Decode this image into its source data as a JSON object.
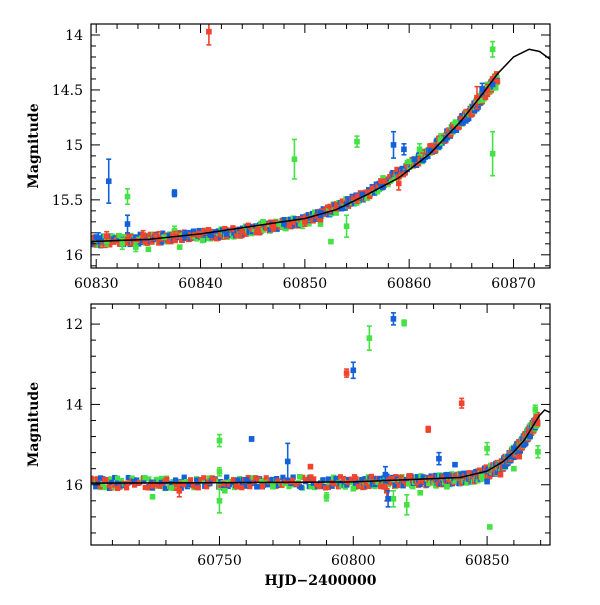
{
  "colors": {
    "green": "#44e244",
    "red": "#f2442c",
    "blue": "#1460d8",
    "model": "#000000"
  },
  "chart_data": [
    {
      "type": "scatter",
      "panel": "top",
      "xlabel": "",
      "ylabel": "Magnitude",
      "xlim": [
        60829.5,
        60873.5
      ],
      "ylim": [
        16.12,
        13.9
      ],
      "y_inverted": true,
      "x_ticks": [
        "60830",
        "60840",
        "60850",
        "60860",
        "60870"
      ],
      "y_ticks": [
        "14",
        "14.5",
        "15",
        "15.5",
        "16"
      ],
      "model_curve": [
        [
          60829.5,
          15.88
        ],
        [
          60835,
          15.86
        ],
        [
          60840,
          15.81
        ],
        [
          60845,
          15.74
        ],
        [
          60850,
          15.67
        ],
        [
          60853,
          15.59
        ],
        [
          60856,
          15.45
        ],
        [
          60859,
          15.3
        ],
        [
          60862,
          15.08
        ],
        [
          60865,
          14.78
        ],
        [
          60867,
          14.54
        ],
        [
          60868.5,
          14.35
        ],
        [
          60870,
          14.2
        ],
        [
          60871.5,
          14.13
        ],
        [
          60872.5,
          14.15
        ],
        [
          60873.5,
          14.22
        ]
      ],
      "series": [
        {
          "name": "",
          "color": "green",
          "points": [
            [
              60831,
              15.88,
              0.04
            ],
            [
              60832.5,
              15.9,
              0.05
            ],
            [
              60833,
              15.47,
              0.07
            ],
            [
              60833.8,
              15.93,
              0.04
            ],
            [
              60835,
              15.95,
              0
            ],
            [
              60836.5,
              15.84,
              0
            ],
            [
              60837.5,
              15.78,
              0.04
            ],
            [
              60838,
              15.93,
              0
            ],
            [
              60840.2,
              15.87,
              0
            ],
            [
              60842.5,
              15.8,
              0
            ],
            [
              60844,
              15.78,
              0
            ],
            [
              60845.5,
              15.75,
              0
            ],
            [
              60846,
              15.7,
              0
            ],
            [
              60847.5,
              15.72,
              0
            ],
            [
              60849,
              15.13,
              0.18
            ],
            [
              60849.8,
              15.72,
              0.04
            ],
            [
              60851.5,
              15.72,
              0
            ],
            [
              60852.5,
              15.88,
              0
            ],
            [
              60853,
              15.62,
              0
            ],
            [
              60854,
              15.74,
              0.1
            ],
            [
              60855,
              14.97,
              0.05
            ],
            [
              60857.5,
              15.3,
              0
            ],
            [
              60860,
              15.15,
              0
            ],
            [
              60861,
              15.04,
              0.05
            ],
            [
              60862,
              15.05,
              0
            ],
            [
              60863,
              14.95,
              0.05
            ],
            [
              60864.5,
              14.8,
              0
            ],
            [
              60866.5,
              14.6,
              0
            ],
            [
              60867.5,
              14.45,
              0
            ],
            [
              60868,
              14.13,
              0.07
            ],
            [
              60868,
              15.08,
              0.2
            ],
            [
              60868.3,
              14.48,
              0
            ]
          ]
        },
        {
          "name": "",
          "color": "red",
          "points": [
            [
              60831,
              15.83,
              0.04
            ],
            [
              60833,
              15.86,
              0.05
            ],
            [
              60834.5,
              15.82,
              0.04
            ],
            [
              60836,
              15.85,
              0.06
            ],
            [
              60837.5,
              15.83,
              0.04
            ],
            [
              60840.8,
              13.97,
              0.12
            ],
            [
              60842.5,
              15.82,
              0.03
            ],
            [
              60844,
              15.79,
              0
            ],
            [
              60845.5,
              15.77,
              0
            ],
            [
              60847,
              15.75,
              0.03
            ],
            [
              60848.5,
              15.73,
              0
            ],
            [
              60850,
              15.7,
              0.04
            ],
            [
              60851.5,
              15.68,
              0
            ],
            [
              60853,
              15.58,
              0
            ],
            [
              60855,
              15.49,
              0.04
            ],
            [
              60856,
              15.43,
              0
            ],
            [
              60857.5,
              15.33,
              0
            ],
            [
              60859,
              15.35,
              0.06
            ],
            [
              60860.5,
              15.13,
              0
            ],
            [
              60862,
              15.01,
              0
            ],
            [
              60863.5,
              14.96,
              0
            ],
            [
              60865,
              14.77,
              0
            ],
            [
              60866.5,
              14.57,
              0.1
            ],
            [
              60867.5,
              14.5,
              0.05
            ],
            [
              60868,
              14.4,
              0
            ]
          ]
        },
        {
          "name": "",
          "color": "blue",
          "points": [
            [
              60830.2,
              15.85,
              0.05
            ],
            [
              60831.2,
              15.33,
              0.2
            ],
            [
              60833,
              15.72,
              0.08
            ],
            [
              60837.5,
              15.44,
              0.03
            ],
            [
              60838.5,
              15.82,
              0.04
            ],
            [
              60841,
              15.82,
              0
            ],
            [
              60842.5,
              15.81,
              0
            ],
            [
              60848,
              15.72,
              0
            ],
            [
              60851.5,
              15.63,
              0.03
            ],
            [
              60853.5,
              15.58,
              0
            ],
            [
              60854,
              15.54,
              0
            ],
            [
              60855.5,
              15.45,
              0
            ],
            [
              60857.5,
              15.38,
              0
            ],
            [
              60858.5,
              15.0,
              0.12
            ],
            [
              60859.5,
              15.04,
              0.05
            ],
            [
              60860.5,
              15.13,
              0
            ],
            [
              60862,
              15.05,
              0
            ],
            [
              60863.5,
              14.95,
              0
            ],
            [
              60865,
              14.8,
              0
            ],
            [
              60867,
              14.49,
              0.05
            ],
            [
              60868,
              14.45,
              0
            ]
          ]
        }
      ],
      "dense_band": [
        [
          60829.5,
          15.88,
          60836,
          15.85
        ],
        [
          60836,
          15.85,
          60843,
          15.8
        ],
        [
          60843,
          15.8,
          60850,
          15.69
        ],
        [
          60850,
          15.69,
          60856,
          15.45
        ],
        [
          60856,
          15.45,
          60862,
          15.06
        ],
        [
          60862,
          15.06,
          60866,
          14.69
        ],
        [
          60866,
          14.69,
          60868.5,
          14.38
        ]
      ]
    },
    {
      "type": "scatter",
      "panel": "bottom",
      "xlabel": "HJD−2400000",
      "ylabel": "Magnitude",
      "xlim": [
        60702,
        60873.5
      ],
      "ylim": [
        17.5,
        11.5
      ],
      "y_inverted": true,
      "x_ticks": [
        "60750",
        "60800",
        "60850"
      ],
      "y_ticks": [
        "12",
        "14",
        "16"
      ],
      "model_curve": [
        [
          60702,
          15.96
        ],
        [
          60750,
          15.95
        ],
        [
          60800,
          15.93
        ],
        [
          60840,
          15.82
        ],
        [
          60850,
          15.66
        ],
        [
          60856,
          15.42
        ],
        [
          60860,
          15.18
        ],
        [
          60864,
          14.88
        ],
        [
          60867,
          14.55
        ],
        [
          60869.5,
          14.28
        ],
        [
          60871.5,
          14.14
        ],
        [
          60873.5,
          14.2
        ]
      ],
      "series": [
        {
          "name": "",
          "color": "green",
          "points": [
            [
              60725,
              16.3,
              0
            ],
            [
              60732,
              16.08,
              0
            ],
            [
              60750,
              14.9,
              0.15
            ],
            [
              60750,
              15.68,
              0.1
            ],
            [
              60750,
              16.4,
              0.3
            ],
            [
              60752,
              16.15,
              0
            ],
            [
              60770,
              16.05,
              0
            ],
            [
              60780,
              15.8,
              0
            ],
            [
              60790,
              16.3,
              0.1
            ],
            [
              60800,
              16.1,
              0
            ],
            [
              60806,
              12.35,
              0.3
            ],
            [
              60815,
              16.35,
              0.2
            ],
            [
              60819,
              11.97,
              0.07
            ],
            [
              60820,
              16.5,
              0.25
            ],
            [
              60825,
              16.2,
              0
            ],
            [
              60835,
              16.05,
              0
            ],
            [
              60848,
              15.8,
              0
            ],
            [
              60850,
              15.1,
              0.15
            ],
            [
              60851,
              17.05,
              0
            ],
            [
              60860,
              15.6,
              0
            ],
            [
              60868,
              14.12,
              0.1
            ],
            [
              60869,
              15.18,
              0.15
            ]
          ]
        },
        {
          "name": "",
          "color": "red",
          "points": [
            [
              60735,
              16.15,
              0.15
            ],
            [
              60784,
              15.55,
              0.05
            ],
            [
              60797.5,
              13.22,
              0.1
            ],
            [
              60812.5,
              16.15,
              0.25
            ],
            [
              60821,
              15.78,
              0.05
            ],
            [
              60828,
              14.62,
              0.07
            ],
            [
              60840.5,
              13.97,
              0.12
            ],
            [
              60855,
              15.75,
              0
            ],
            [
              60862,
              15.3,
              0.05
            ],
            [
              60866,
              14.75,
              0.1
            ],
            [
              60868.5,
              14.35,
              0
            ]
          ]
        },
        {
          "name": "",
          "color": "blue",
          "points": [
            [
              60760,
              15.88,
              0.04
            ],
            [
              60762,
              14.86,
              0.05
            ],
            [
              60764,
              16.05,
              0
            ],
            [
              60775.5,
              15.42,
              0.45
            ],
            [
              60800,
              13.15,
              0.2
            ],
            [
              60812,
              15.75,
              0.2
            ],
            [
              60813,
              16.35,
              0.2
            ],
            [
              60815,
              11.87,
              0.15
            ],
            [
              60832,
              15.35,
              0.15
            ],
            [
              60835,
              15.75,
              0
            ],
            [
              60838,
              15.5,
              0
            ],
            [
              60850,
              15.92,
              0.05
            ],
            [
              60858,
              15.3,
              0.05
            ],
            [
              60860,
              15.1,
              0
            ],
            [
              60866,
              14.8,
              0
            ]
          ]
        }
      ],
      "dense_band": [
        [
          60702,
          15.96,
          60750,
          15.95
        ],
        [
          60750,
          15.95,
          60800,
          15.94
        ],
        [
          60800,
          15.94,
          60830,
          15.9
        ],
        [
          60830,
          15.9,
          60845,
          15.82
        ],
        [
          60845,
          15.82,
          60855,
          15.55
        ],
        [
          60855,
          15.55,
          60863,
          14.98
        ],
        [
          60863,
          14.98,
          60869,
          14.35
        ]
      ]
    }
  ]
}
